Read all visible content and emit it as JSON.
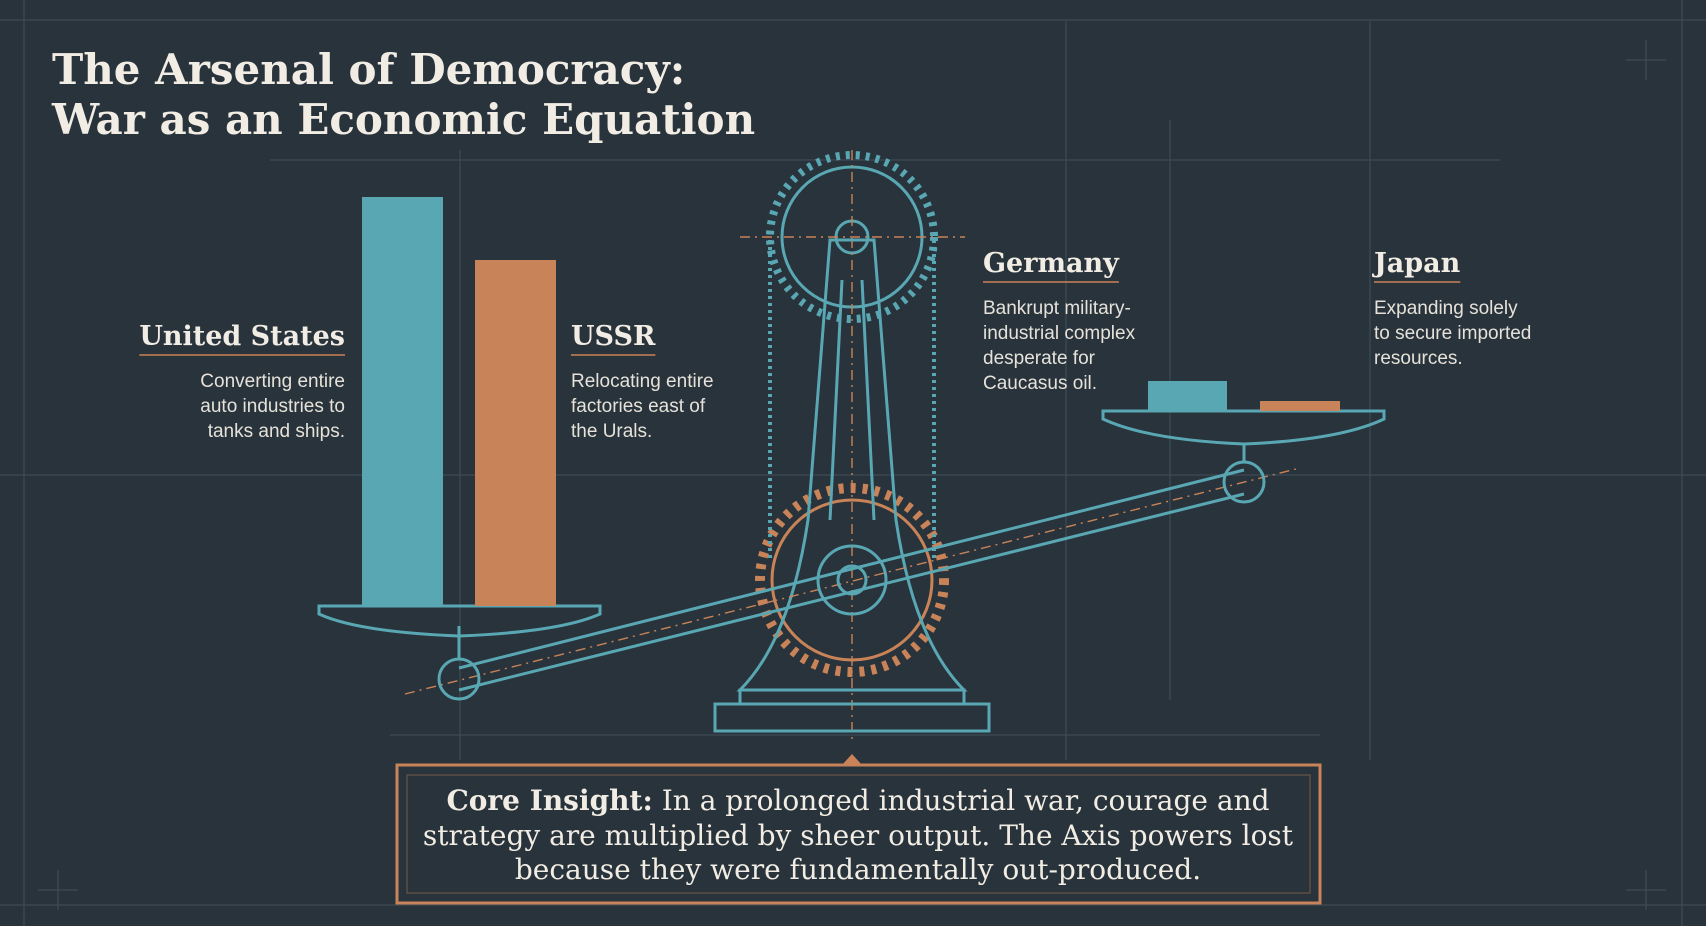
{
  "header": {
    "title_lines": [
      "The Arsenal of Democracy:",
      "War as an Economic Equation"
    ]
  },
  "labels": [
    {
      "name": "United States",
      "lines": [
        "Converting entire",
        "auto industries to",
        "tanks and ships."
      ]
    },
    {
      "name": "USSR",
      "lines": [
        "Relocating entire",
        "factories east of",
        "the Urals."
      ]
    },
    {
      "name": "Germany",
      "lines": [
        "Bankrupt military-",
        "industrial complex",
        "desperate for",
        "Caucasus oil."
      ]
    },
    {
      "name": "Japan",
      "lines": [
        "Expanding solely",
        "to secure imported",
        "resources."
      ]
    }
  ],
  "insight": {
    "label": "Core Insight:",
    "lines": [
      "In a prolonged industrial war, courage and",
      "strategy are multiplied by sheer output. The Axis powers lost",
      "because they were fundamentally out-produced."
    ]
  }
}
